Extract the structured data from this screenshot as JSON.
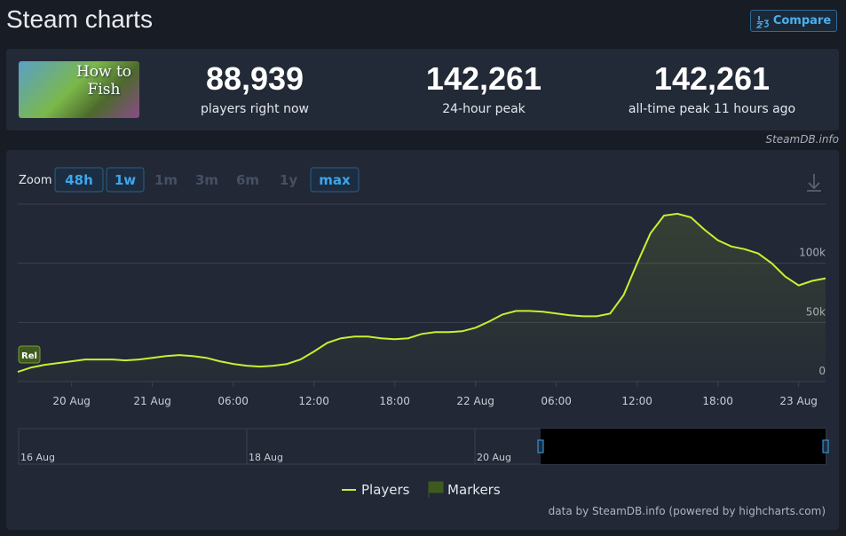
{
  "header": {
    "title": "Steam charts",
    "compare_button": "Compare"
  },
  "game": {
    "thumbnail_lines": [
      "How to",
      "Fish"
    ]
  },
  "stats": [
    {
      "value": "88,939",
      "label": "players right now"
    },
    {
      "value": "142,261",
      "label": "24-hour peak"
    },
    {
      "value": "142,261",
      "label": "all-time peak 11 hours ago"
    }
  ],
  "source_note": "SteamDB.info",
  "zoom": {
    "label": "Zoom",
    "options": [
      "48h",
      "1w",
      "1m",
      "3m",
      "6m",
      "1y",
      "max"
    ],
    "enabled": [
      true,
      true,
      false,
      false,
      false,
      false,
      true
    ]
  },
  "chart_data": {
    "type": "line",
    "categories": [
      null,
      null,
      null,
      null,
      "20 Aug",
      null,
      null,
      null,
      null,
      null,
      "21 Aug",
      null,
      null,
      null,
      null,
      null,
      "06:00",
      null,
      null,
      null,
      null,
      null,
      "12:00",
      null,
      null,
      null,
      null,
      null,
      "18:00",
      null,
      null,
      null,
      null,
      null,
      "22 Aug",
      null,
      null,
      null,
      null,
      null,
      "06:00",
      null,
      null,
      null,
      null,
      null,
      "12:00",
      null,
      null,
      null,
      null,
      null,
      "18:00",
      null,
      null,
      null,
      null,
      null,
      "23 Aug",
      null,
      null
    ],
    "series": [
      {
        "name": "Players",
        "color": "#c8f032",
        "values": [
          8200,
          11900,
          14200,
          15700,
          17200,
          18700,
          18700,
          18700,
          17900,
          18700,
          20100,
          21600,
          22400,
          21600,
          20100,
          17200,
          14900,
          13400,
          12700,
          13400,
          14900,
          18700,
          25400,
          32800,
          36600,
          38100,
          38100,
          36600,
          35800,
          36600,
          40300,
          41800,
          41800,
          42500,
          45500,
          50700,
          56700,
          59700,
          59700,
          59000,
          57500,
          56000,
          55200,
          55200,
          57500,
          73100,
          100000,
          125400,
          140300,
          141800,
          138800,
          128400,
          119400,
          114200,
          111900,
          108200,
          100000,
          88800,
          81300,
          85100,
          87300
        ]
      }
    ],
    "ylim": [
      0,
      150000
    ],
    "yticks": [
      {
        "value": 0,
        "label": "0"
      },
      {
        "value": 50000,
        "label": "50k"
      },
      {
        "value": 100000,
        "label": "100k"
      }
    ],
    "grid": true,
    "flag_label": "Rel",
    "marker_legend": {
      "name": "Markers",
      "color": "#3f5a1e"
    },
    "navigator_labels": [
      "16 Aug",
      "18 Aug",
      "20 Aug"
    ],
    "credits": "data by SteamDB.info (powered by highcharts.com)"
  }
}
